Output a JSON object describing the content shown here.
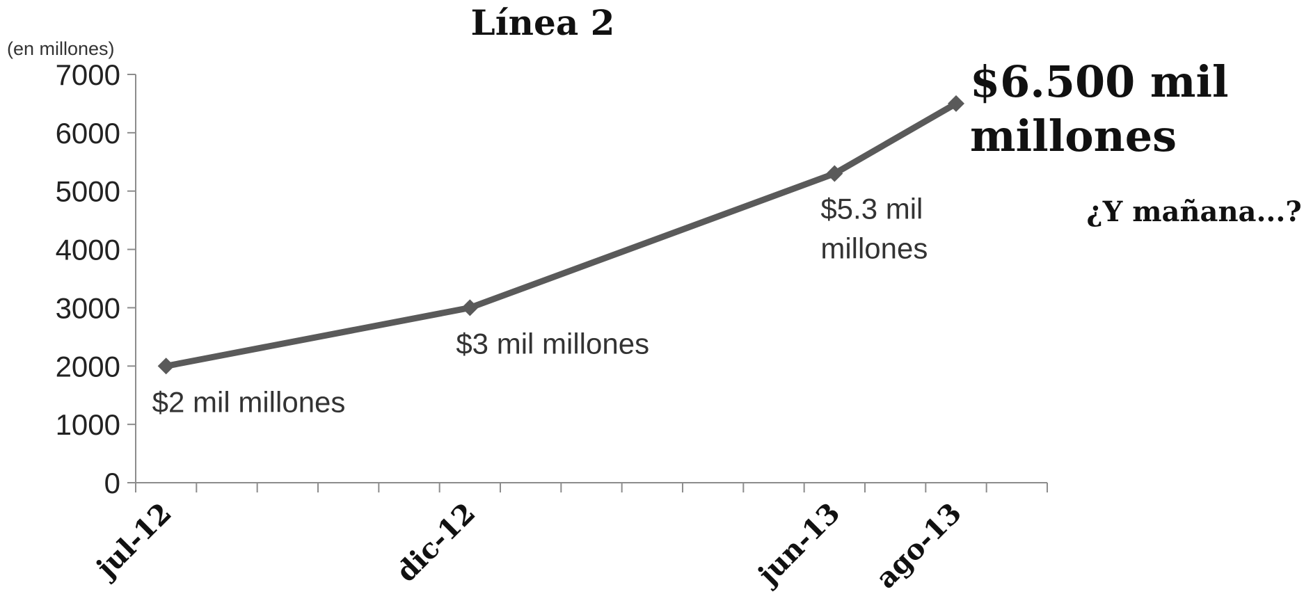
{
  "chart_data": {
    "type": "line",
    "title": "Línea 2",
    "ylabel": "(en millones)",
    "xlabel": "",
    "ylim": [
      0,
      7000
    ],
    "yticks": [
      0,
      1000,
      2000,
      3000,
      4000,
      5000,
      6000,
      7000
    ],
    "x_axis": {
      "type": "date",
      "start": "2012-07",
      "end": "2013-10",
      "tick_labels": [
        {
          "label": "jul-12",
          "date": "2012-07"
        },
        {
          "label": "dic-12",
          "date": "2012-12"
        },
        {
          "label": "jun-13",
          "date": "2013-06"
        },
        {
          "label": "ago-13",
          "date": "2013-08"
        }
      ]
    },
    "grid": false,
    "legend": "none",
    "series": [
      {
        "color": "#5a5a5a",
        "marker": "diamond",
        "points": [
          {
            "x": "2012-07",
            "y": 2000,
            "label": "$2 mil millones"
          },
          {
            "x": "2012-12",
            "y": 3000,
            "label": "$3 mil millones"
          },
          {
            "x": "2013-06",
            "y": 5300,
            "label": "$5.3 mil millones"
          },
          {
            "x": "2013-08",
            "y": 6500,
            "label": "$6.500 mil millones"
          }
        ]
      }
    ],
    "annotations": [
      {
        "text": "¿Y mañana...?"
      }
    ]
  }
}
